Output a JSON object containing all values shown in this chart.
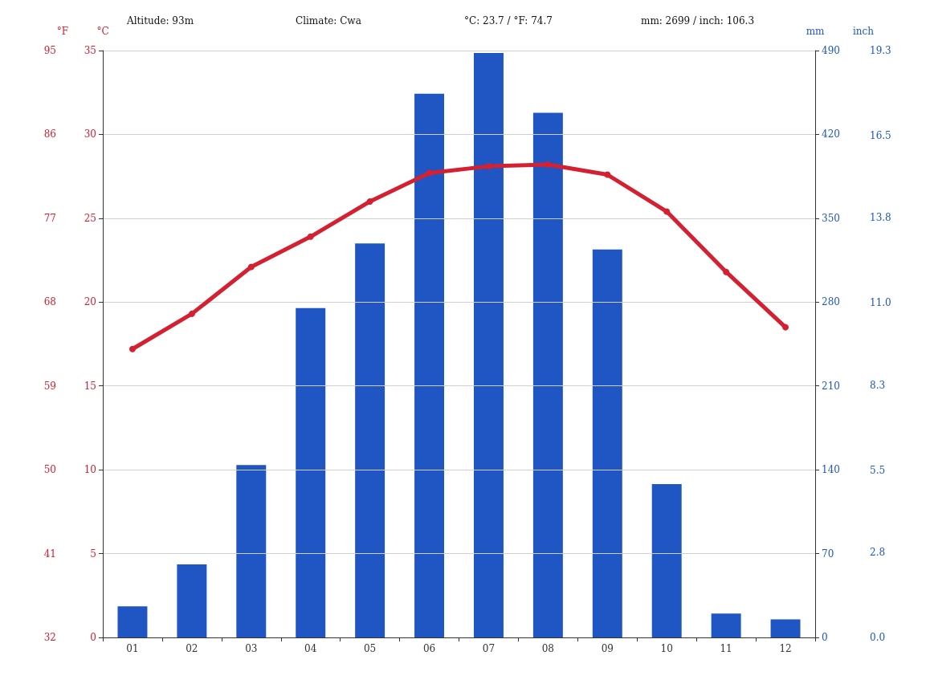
{
  "chart_data": [
    {
      "type": "line",
      "annotations": [
        "Altitude: 93m",
        "Climate: Cwa",
        "°C: 23.7 / °F: 74.7",
        "mm: 2699 / inch: 106.3"
      ],
      "categories": [
        "01",
        "02",
        "03",
        "04",
        "05",
        "06",
        "07",
        "08",
        "09",
        "10",
        "11",
        "12"
      ],
      "ylabel": "°C",
      "y2label": "°F",
      "series": [
        {
          "color": "#d42030",
          "values": [
            17.2,
            19.3,
            22.1,
            23.9,
            26.0,
            27.7,
            28.1,
            28.2,
            27.6,
            25.4,
            21.8,
            18.5
          ]
        }
      ],
      "marker": "circle",
      "ylim": [
        0,
        35
      ],
      "yticks": [
        0,
        5,
        10,
        15,
        20,
        25,
        30,
        35
      ],
      "y2lim": [
        32,
        95
      ],
      "y2ticks": [
        32,
        41,
        50,
        59,
        68,
        77,
        86,
        95
      ],
      "grid": "y"
    },
    {
      "type": "bar",
      "categories": [
        "01",
        "02",
        "03",
        "04",
        "05",
        "06",
        "07",
        "08",
        "09",
        "10",
        "11",
        "12"
      ],
      "ylabel": "mm",
      "y2label": "inch",
      "series": [
        {
          "color": "#1f56c4",
          "values": [
            26,
            61,
            144,
            275,
            329,
            454,
            488,
            438,
            324,
            128,
            20,
            15
          ]
        }
      ],
      "ylim": [
        0,
        490
      ],
      "yticks": [
        0,
        70,
        140,
        210,
        280,
        350,
        420,
        490
      ],
      "y2lim": [
        0,
        19.3
      ],
      "y2ticks": [
        {
          "value": 0,
          "label": "0.0"
        },
        {
          "value": 2.8,
          "label": "2.8"
        },
        {
          "value": 5.5,
          "label": "5.5"
        },
        {
          "value": 8.3,
          "label": "8.3"
        },
        {
          "value": 11.0,
          "label": "11.0"
        },
        {
          "value": 13.8,
          "label": "13.8"
        },
        {
          "value": 16.5,
          "label": "16.5"
        },
        {
          "value": 19.3,
          "label": "19.3"
        }
      ],
      "tick_labels": "y"
    }
  ]
}
